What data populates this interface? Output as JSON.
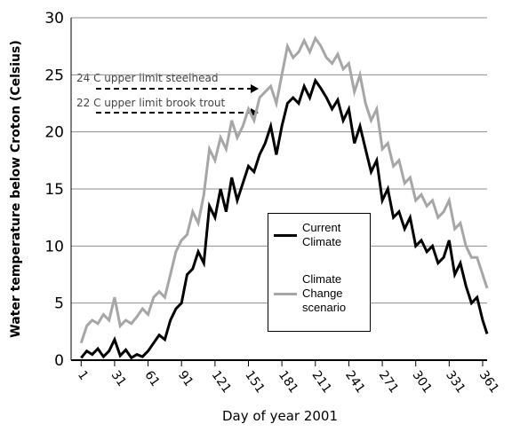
{
  "chart_data": {
    "type": "line",
    "y_label": "Water temperature below Croton (Celsius)",
    "x_label": "Day of year 2001",
    "annotations": [
      "24 C upper limit steelhead",
      "22 C upper limit brook trout"
    ],
    "x": [
      1,
      6,
      11,
      16,
      21,
      26,
      31,
      36,
      41,
      46,
      51,
      56,
      61,
      66,
      71,
      76,
      81,
      86,
      91,
      96,
      101,
      106,
      111,
      116,
      121,
      126,
      131,
      136,
      141,
      146,
      151,
      156,
      161,
      166,
      171,
      176,
      181,
      186,
      191,
      196,
      201,
      206,
      211,
      216,
      221,
      226,
      231,
      236,
      241,
      246,
      251,
      256,
      261,
      266,
      271,
      276,
      281,
      286,
      291,
      296,
      301,
      306,
      311,
      316,
      321,
      326,
      331,
      336,
      341,
      346,
      351,
      356,
      361,
      365
    ],
    "series": [
      {
        "name": "Current Climate",
        "color": "#000000",
        "values": [
          0.2,
          0.8,
          0.5,
          1.0,
          0.3,
          0.8,
          1.8,
          0.4,
          0.9,
          0.2,
          0.5,
          0.3,
          0.8,
          1.5,
          2.2,
          1.8,
          3.5,
          4.5,
          5.0,
          7.5,
          8.0,
          9.5,
          8.5,
          13.5,
          12.5,
          15.0,
          13.0,
          16.0,
          14.0,
          15.5,
          17.0,
          16.5,
          18.0,
          19.0,
          20.5,
          18.0,
          20.5,
          22.5,
          23.0,
          22.5,
          24.0,
          23.0,
          24.5,
          23.8,
          23.0,
          22.0,
          22.8,
          21.0,
          22.0,
          19.0,
          20.5,
          18.5,
          16.5,
          17.5,
          14.0,
          15.0,
          12.5,
          13.0,
          11.5,
          12.5,
          10.0,
          10.5,
          9.5,
          10.0,
          8.5,
          9.0,
          10.5,
          7.5,
          8.5,
          6.5,
          5.0,
          5.5,
          3.5,
          2.3
        ]
      },
      {
        "name": "Climate Change scenario",
        "color": "#a6a6a6",
        "values": [
          1.5,
          3.0,
          3.5,
          3.2,
          4.0,
          3.5,
          5.5,
          3.0,
          3.5,
          3.2,
          3.8,
          4.5,
          4.0,
          5.5,
          6.0,
          5.5,
          7.5,
          9.5,
          10.5,
          11.0,
          13.0,
          12.0,
          14.5,
          18.5,
          17.5,
          19.5,
          18.5,
          21.0,
          19.5,
          20.5,
          22.0,
          21.0,
          23.0,
          23.5,
          24.0,
          22.5,
          25.0,
          27.5,
          26.5,
          27.0,
          28.0,
          27.0,
          28.2,
          27.5,
          26.5,
          26.0,
          26.8,
          25.5,
          26.0,
          23.5,
          25.0,
          22.5,
          21.0,
          22.0,
          18.5,
          19.0,
          17.0,
          17.5,
          15.5,
          16.0,
          14.0,
          14.5,
          13.5,
          14.0,
          12.5,
          13.0,
          14.0,
          11.5,
          12.0,
          10.0,
          9.0,
          9.0,
          7.5,
          6.3
        ]
      }
    ],
    "xlim": [
      -8,
      365
    ],
    "xticks": [
      1,
      31,
      61,
      91,
      121,
      151,
      181,
      211,
      241,
      271,
      301,
      331,
      361
    ],
    "ylim": [
      0,
      30
    ],
    "yticks": [
      0,
      5,
      10,
      15,
      20,
      25,
      30
    ],
    "grid": true
  }
}
